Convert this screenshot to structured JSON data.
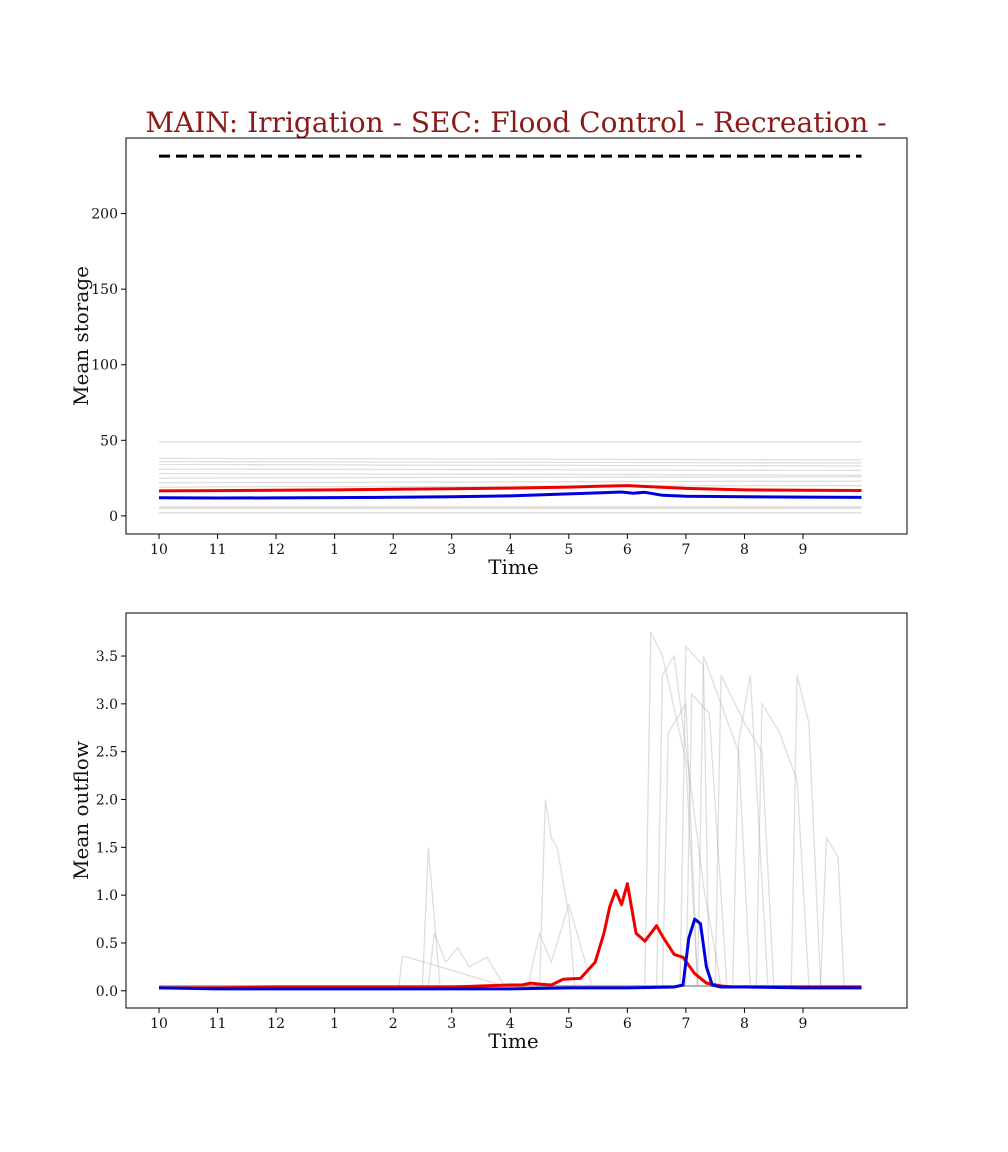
{
  "title": "MAIN: Irrigation - SEC: Flood Control - Recreation -",
  "chart_data": [
    {
      "type": "line",
      "xlabel": "Time",
      "ylabel": "Mean storage",
      "x_ticks": [
        "10",
        "11",
        "12",
        "1",
        "2",
        "3",
        "4",
        "5",
        "6",
        "7",
        "8",
        "9"
      ],
      "y_ticks": [
        "0",
        "50",
        "100",
        "150",
        "200"
      ],
      "ylim": [
        -12,
        250
      ],
      "grid": false,
      "reference_level": 238,
      "series": [
        {
          "color": "#ee0000",
          "x": [
            0,
            1,
            2,
            3,
            4,
            5,
            6,
            7,
            7.5,
            8,
            9,
            10,
            11,
            12
          ],
          "values": [
            16.5,
            16.7,
            16.9,
            17.2,
            17.6,
            18.0,
            18.4,
            19.0,
            19.6,
            20.0,
            18.2,
            17.2,
            17.0,
            16.8
          ]
        },
        {
          "color": "#0000dd",
          "x": [
            0,
            1,
            2,
            3,
            4,
            5,
            6,
            7,
            7.5,
            7.9,
            8.1,
            8.3,
            8.6,
            9,
            10,
            11,
            12
          ],
          "values": [
            12.0,
            11.8,
            11.9,
            12.1,
            12.3,
            12.6,
            13.2,
            14.5,
            15.2,
            15.8,
            15.0,
            15.6,
            13.6,
            13.0,
            12.6,
            12.4,
            12.2
          ]
        }
      ],
      "ensemble": [
        {
          "x": [
            0,
            12
          ],
          "values": [
            49,
            49
          ]
        },
        {
          "x": [
            0,
            12
          ],
          "values": [
            38,
            37
          ]
        },
        {
          "x": [
            0,
            12
          ],
          "values": [
            36,
            35
          ]
        },
        {
          "x": [
            0,
            12
          ],
          "values": [
            34,
            33
          ]
        },
        {
          "x": [
            0,
            12
          ],
          "values": [
            31,
            30
          ]
        },
        {
          "x": [
            0,
            12
          ],
          "values": [
            28,
            27
          ]
        },
        {
          "x": [
            0,
            12
          ],
          "values": [
            25,
            26
          ]
        },
        {
          "x": [
            0,
            12
          ],
          "values": [
            22,
            23
          ]
        },
        {
          "x": [
            0,
            12
          ],
          "values": [
            19,
            20
          ]
        },
        {
          "x": [
            0,
            12
          ],
          "values": [
            6,
            6
          ]
        },
        {
          "x": [
            0,
            12
          ],
          "values": [
            5,
            5
          ]
        },
        {
          "x": [
            0,
            12
          ],
          "values": [
            2,
            2
          ]
        }
      ]
    },
    {
      "type": "line",
      "xlabel": "Time",
      "ylabel": "Mean outflow",
      "x_ticks": [
        "10",
        "11",
        "12",
        "1",
        "2",
        "3",
        "4",
        "5",
        "6",
        "7",
        "8",
        "9"
      ],
      "y_ticks": [
        "0.0",
        "0.5",
        "1.0",
        "1.5",
        "2.0",
        "2.5",
        "3.0",
        "3.5"
      ],
      "ylim": [
        -0.18,
        3.95
      ],
      "grid": false,
      "series": [
        {
          "color": "#ee0000",
          "x": [
            0,
            1,
            2,
            3,
            4,
            5,
            6,
            6.2,
            6.35,
            6.5,
            6.7,
            6.9,
            7.2,
            7.45,
            7.6,
            7.7,
            7.8,
            7.9,
            8.0,
            8.15,
            8.3,
            8.5,
            8.6,
            8.8,
            8.95,
            9.15,
            9.35,
            9.6,
            9.8,
            10.2,
            11,
            12
          ],
          "values": [
            0.03,
            0.03,
            0.04,
            0.04,
            0.04,
            0.04,
            0.06,
            0.06,
            0.08,
            0.07,
            0.06,
            0.12,
            0.13,
            0.3,
            0.6,
            0.88,
            1.05,
            0.9,
            1.12,
            0.6,
            0.52,
            0.68,
            0.57,
            0.38,
            0.35,
            0.18,
            0.08,
            0.05,
            0.04,
            0.04,
            0.04,
            0.04
          ]
        },
        {
          "color": "#0000dd",
          "x": [
            0,
            1,
            2,
            3,
            4,
            5,
            6,
            7,
            8,
            8.8,
            8.95,
            9.05,
            9.15,
            9.25,
            9.35,
            9.45,
            9.6,
            10,
            11,
            12
          ],
          "values": [
            0.03,
            0.02,
            0.02,
            0.02,
            0.02,
            0.02,
            0.02,
            0.03,
            0.03,
            0.04,
            0.06,
            0.55,
            0.75,
            0.7,
            0.25,
            0.06,
            0.04,
            0.04,
            0.03,
            0.03
          ]
        }
      ],
      "ensemble": [
        {
          "x": [
            0,
            6.5,
            6.6,
            6.7,
            6.8,
            7.0,
            7.1,
            12
          ],
          "values": [
            0.05,
            0.05,
            2.0,
            1.6,
            1.5,
            0.8,
            0.05,
            0.05
          ]
        },
        {
          "x": [
            0,
            4.6,
            4.7,
            4.9,
            5.1,
            5.3,
            5.6,
            5.9,
            12
          ],
          "values": [
            0.04,
            0.04,
            0.6,
            0.3,
            0.45,
            0.25,
            0.35,
            0.05,
            0.05
          ]
        },
        {
          "x": [
            0,
            4.5,
            4.6,
            4.8,
            12
          ],
          "values": [
            0.04,
            0.04,
            1.5,
            0.05,
            0.05
          ]
        },
        {
          "x": [
            0,
            6.3,
            6.5,
            6.7,
            7.0,
            7.4,
            12
          ],
          "values": [
            0.05,
            0.05,
            0.6,
            0.3,
            0.9,
            0.05,
            0.05
          ]
        },
        {
          "x": [
            0,
            4.1,
            4.15,
            4.2,
            5.9,
            12
          ],
          "values": [
            0.04,
            0.04,
            0.35,
            0.36,
            0.05,
            0.05
          ]
        },
        {
          "x": [
            0,
            8.3,
            8.4,
            8.6,
            9.0,
            9.2,
            12
          ],
          "values": [
            0.05,
            0.05,
            3.75,
            3.5,
            2.4,
            0.05,
            0.05
          ]
        },
        {
          "x": [
            0,
            8.5,
            8.6,
            8.8,
            9.3,
            9.6,
            12
          ],
          "values": [
            0.05,
            0.05,
            3.3,
            3.5,
            1.1,
            0.05,
            0.05
          ]
        },
        {
          "x": [
            0,
            8.9,
            9.0,
            9.3,
            9.4,
            12
          ],
          "values": [
            0.05,
            0.05,
            3.6,
            3.4,
            0.05,
            0.05
          ]
        },
        {
          "x": [
            0,
            8.6,
            8.7,
            9.0,
            9.2,
            12
          ],
          "values": [
            0.05,
            0.05,
            2.7,
            3.0,
            0.05,
            0.05
          ]
        },
        {
          "x": [
            0,
            9.2,
            9.3,
            9.6,
            9.9,
            10.1,
            12
          ],
          "values": [
            0.05,
            0.05,
            3.5,
            3.0,
            2.5,
            0.05,
            0.05
          ]
        },
        {
          "x": [
            0,
            9.5,
            9.6,
            10.0,
            10.3,
            10.5,
            12
          ],
          "values": [
            0.05,
            0.05,
            3.3,
            2.8,
            2.5,
            0.05,
            0.05
          ]
        },
        {
          "x": [
            0,
            10.2,
            10.3,
            10.6,
            10.9,
            11.1,
            12
          ],
          "values": [
            0.05,
            0.05,
            3.0,
            2.7,
            2.2,
            0.05,
            0.05
          ]
        },
        {
          "x": [
            0,
            10.8,
            10.9,
            11.1,
            11.3,
            12
          ],
          "values": [
            0.05,
            0.05,
            3.3,
            2.8,
            0.05,
            0.05
          ]
        },
        {
          "x": [
            0,
            11.3,
            11.4,
            11.6,
            11.7,
            12
          ],
          "values": [
            0.05,
            0.05,
            1.6,
            1.4,
            0.05,
            0.05
          ]
        },
        {
          "x": [
            0,
            9.8,
            9.9,
            10.1,
            10.4,
            12
          ],
          "values": [
            0.05,
            0.05,
            2.6,
            3.3,
            0.05,
            0.05
          ]
        },
        {
          "x": [
            0,
            9.0,
            9.1,
            9.4,
            9.7,
            12
          ],
          "values": [
            0.05,
            0.05,
            3.1,
            2.9,
            0.05,
            0.05
          ]
        }
      ]
    }
  ]
}
